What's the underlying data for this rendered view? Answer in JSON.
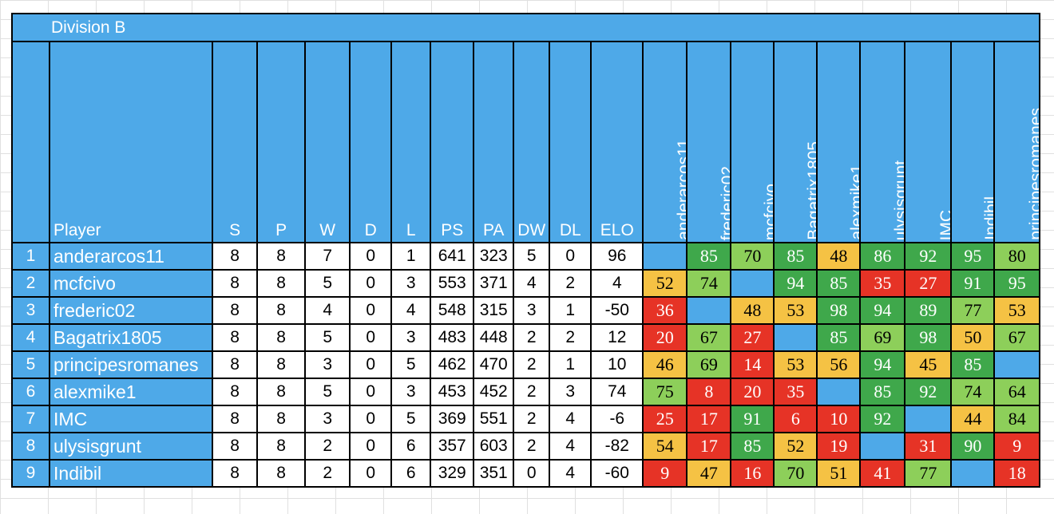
{
  "title": "Division B",
  "header": {
    "player": "Player",
    "stats": [
      "S",
      "P",
      "W",
      "D",
      "L",
      "PS",
      "PA",
      "DW",
      "DL",
      "ELO"
    ],
    "opponents": [
      "anderarcos11",
      "frederic02",
      "mcfcivo",
      "Bagatrix1805",
      "alexmike1",
      "ulysisgrunt",
      "IMC",
      "Indibil",
      "principesromanes"
    ]
  },
  "colors": {
    "header_blue": "#4ea9e8",
    "green": "#3fa84b",
    "light_green": "#8dcf5a",
    "yellow": "#f5c244",
    "red": "#e63326"
  },
  "rows": [
    {
      "rank": "1",
      "player": "anderarcos11",
      "stats": [
        "8",
        "8",
        "7",
        "0",
        "1",
        "641",
        "323",
        "5",
        "0",
        "96"
      ],
      "scores": [
        {
          "v": "",
          "c": "blank"
        },
        {
          "v": "85",
          "c": "green"
        },
        {
          "v": "70",
          "c": "lightgreen"
        },
        {
          "v": "85",
          "c": "green"
        },
        {
          "v": "48",
          "c": "yellow"
        },
        {
          "v": "86",
          "c": "green"
        },
        {
          "v": "92",
          "c": "green"
        },
        {
          "v": "95",
          "c": "green"
        },
        {
          "v": "80",
          "c": "lightgreen"
        }
      ]
    },
    {
      "rank": "2",
      "player": "mcfcivo",
      "stats": [
        "8",
        "8",
        "5",
        "0",
        "3",
        "553",
        "371",
        "4",
        "2",
        "4"
      ],
      "scores": [
        {
          "v": "52",
          "c": "yellow"
        },
        {
          "v": "74",
          "c": "lightgreen"
        },
        {
          "v": "",
          "c": "blank"
        },
        {
          "v": "94",
          "c": "green"
        },
        {
          "v": "85",
          "c": "green"
        },
        {
          "v": "35",
          "c": "red"
        },
        {
          "v": "27",
          "c": "red"
        },
        {
          "v": "91",
          "c": "green"
        },
        {
          "v": "95",
          "c": "green"
        }
      ]
    },
    {
      "rank": "3",
      "player": "frederic02",
      "stats": [
        "8",
        "8",
        "4",
        "0",
        "4",
        "548",
        "315",
        "3",
        "1",
        "-50"
      ],
      "scores": [
        {
          "v": "36",
          "c": "red"
        },
        {
          "v": "",
          "c": "blank"
        },
        {
          "v": "48",
          "c": "yellow"
        },
        {
          "v": "53",
          "c": "yellow"
        },
        {
          "v": "98",
          "c": "green"
        },
        {
          "v": "94",
          "c": "green"
        },
        {
          "v": "89",
          "c": "green"
        },
        {
          "v": "77",
          "c": "lightgreen"
        },
        {
          "v": "53",
          "c": "yellow"
        }
      ]
    },
    {
      "rank": "4",
      "player": "Bagatrix1805",
      "stats": [
        "8",
        "8",
        "5",
        "0",
        "3",
        "483",
        "448",
        "2",
        "2",
        "12"
      ],
      "scores": [
        {
          "v": "20",
          "c": "red"
        },
        {
          "v": "67",
          "c": "lightgreen"
        },
        {
          "v": "27",
          "c": "red"
        },
        {
          "v": "",
          "c": "blank"
        },
        {
          "v": "85",
          "c": "green"
        },
        {
          "v": "69",
          "c": "lightgreen"
        },
        {
          "v": "98",
          "c": "green"
        },
        {
          "v": "50",
          "c": "yellow"
        },
        {
          "v": "67",
          "c": "lightgreen"
        }
      ]
    },
    {
      "rank": "5",
      "player": "principesromanes",
      "stats": [
        "8",
        "8",
        "3",
        "0",
        "5",
        "462",
        "470",
        "2",
        "1",
        "10"
      ],
      "scores": [
        {
          "v": "46",
          "c": "yellow"
        },
        {
          "v": "69",
          "c": "lightgreen"
        },
        {
          "v": "14",
          "c": "red"
        },
        {
          "v": "53",
          "c": "yellow"
        },
        {
          "v": "56",
          "c": "yellow"
        },
        {
          "v": "94",
          "c": "green"
        },
        {
          "v": "45",
          "c": "yellow"
        },
        {
          "v": "85",
          "c": "green"
        },
        {
          "v": "",
          "c": "blank"
        }
      ]
    },
    {
      "rank": "6",
      "player": "alexmike1",
      "stats": [
        "8",
        "8",
        "5",
        "0",
        "3",
        "453",
        "452",
        "2",
        "3",
        "74"
      ],
      "scores": [
        {
          "v": "75",
          "c": "lightgreen"
        },
        {
          "v": "8",
          "c": "red"
        },
        {
          "v": "20",
          "c": "red"
        },
        {
          "v": "35",
          "c": "red"
        },
        {
          "v": "",
          "c": "blank"
        },
        {
          "v": "85",
          "c": "green"
        },
        {
          "v": "92",
          "c": "green"
        },
        {
          "v": "74",
          "c": "lightgreen"
        },
        {
          "v": "64",
          "c": "lightgreen"
        }
      ]
    },
    {
      "rank": "7",
      "player": "IMC",
      "stats": [
        "8",
        "8",
        "3",
        "0",
        "5",
        "369",
        "551",
        "2",
        "4",
        "-6"
      ],
      "scores": [
        {
          "v": "25",
          "c": "red"
        },
        {
          "v": "17",
          "c": "red"
        },
        {
          "v": "91",
          "c": "green"
        },
        {
          "v": "6",
          "c": "red"
        },
        {
          "v": "10",
          "c": "red"
        },
        {
          "v": "92",
          "c": "green"
        },
        {
          "v": "",
          "c": "blank"
        },
        {
          "v": "44",
          "c": "yellow"
        },
        {
          "v": "84",
          "c": "lightgreen"
        }
      ]
    },
    {
      "rank": "8",
      "player": "ulysisgrunt",
      "stats": [
        "8",
        "8",
        "2",
        "0",
        "6",
        "357",
        "603",
        "2",
        "4",
        "-82"
      ],
      "scores": [
        {
          "v": "54",
          "c": "yellow"
        },
        {
          "v": "17",
          "c": "red"
        },
        {
          "v": "85",
          "c": "green"
        },
        {
          "v": "52",
          "c": "yellow"
        },
        {
          "v": "19",
          "c": "red"
        },
        {
          "v": "",
          "c": "blank"
        },
        {
          "v": "31",
          "c": "red"
        },
        {
          "v": "90",
          "c": "green"
        },
        {
          "v": "9",
          "c": "red"
        }
      ]
    },
    {
      "rank": "9",
      "player": "Indibil",
      "stats": [
        "8",
        "8",
        "2",
        "0",
        "6",
        "329",
        "351",
        "0",
        "4",
        "-60"
      ],
      "scores": [
        {
          "v": "9",
          "c": "red"
        },
        {
          "v": "47",
          "c": "yellow"
        },
        {
          "v": "16",
          "c": "red"
        },
        {
          "v": "70",
          "c": "lightgreen"
        },
        {
          "v": "51",
          "c": "yellow"
        },
        {
          "v": "41",
          "c": "red"
        },
        {
          "v": "77",
          "c": "lightgreen"
        },
        {
          "v": "",
          "c": "blank"
        },
        {
          "v": "18",
          "c": "red"
        }
      ]
    }
  ]
}
